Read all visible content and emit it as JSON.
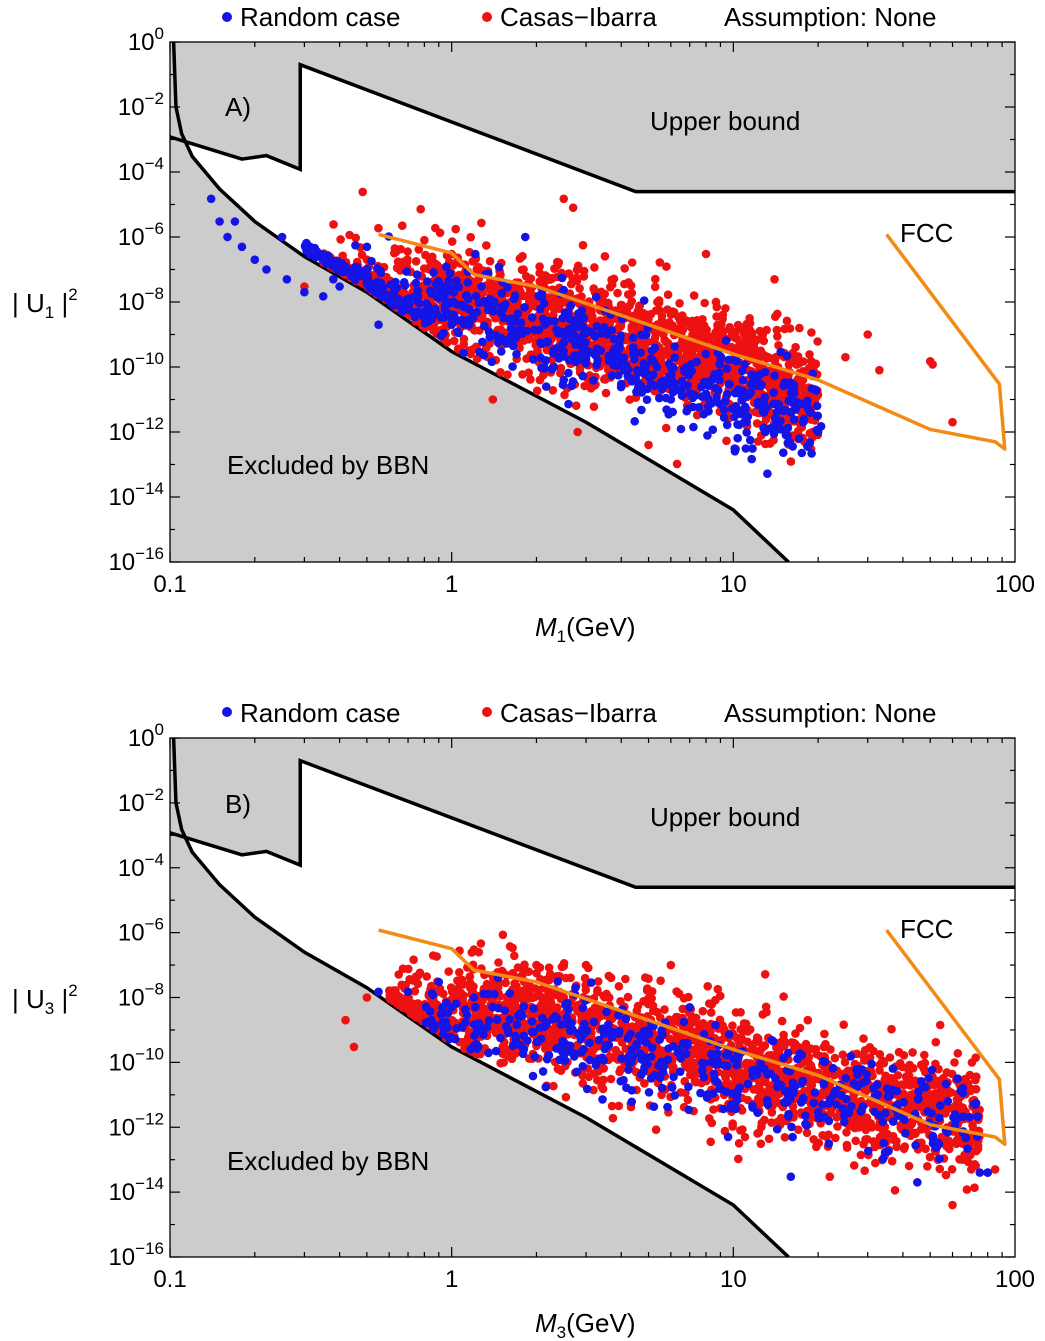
{
  "legend": {
    "random_label": "Random case",
    "ci_label": "Casas−Ibarra",
    "assumption": "Assumption: None",
    "random_color": "#1414e6",
    "ci_color": "#ee1111"
  },
  "region_color": "#cccccc",
  "fcc_color": "#f28a14",
  "chart_data": [
    {
      "type": "scatter",
      "panel_label": "A)",
      "xlabel_var": "M",
      "xlabel_sub": "1",
      "xlabel_unit": "(GeV)",
      "ylabel_pre": "| U",
      "ylabel_sub": "1",
      "ylabel_post": " |",
      "ylabel_sup": "2",
      "xscale": "log",
      "yscale": "log",
      "xlim": [
        0.1,
        100
      ],
      "ylim": [
        1e-16,
        1
      ],
      "x_ticks": [
        {
          "value": 0.1,
          "label": "0.1"
        },
        {
          "value": 1,
          "label": "1"
        },
        {
          "value": 10,
          "label": "10"
        },
        {
          "value": 100,
          "label": "100"
        }
      ],
      "y_ticks": [
        {
          "value": 0,
          "base": "10",
          "exp": "0"
        },
        {
          "value": -2,
          "base": "10",
          "exp": "−2"
        },
        {
          "value": -4,
          "base": "10",
          "exp": "−4"
        },
        {
          "value": -6,
          "base": "10",
          "exp": "−6"
        },
        {
          "value": -8,
          "base": "10",
          "exp": "−8"
        },
        {
          "value": -10,
          "base": "10",
          "exp": "−10"
        },
        {
          "value": -12,
          "base": "10",
          "exp": "−12"
        },
        {
          "value": -14,
          "base": "10",
          "exp": "−14"
        },
        {
          "value": -16,
          "base": "10",
          "exp": "−16"
        }
      ],
      "annotations": {
        "upper": "Upper bound",
        "bbn": "Excluded by BBN",
        "fcc": "FCC"
      },
      "upper_bound": [
        [
          0.1,
          0.0012
        ],
        [
          0.18,
          0.00025
        ],
        [
          0.22,
          0.00032
        ],
        [
          0.29,
          0.00012
        ],
        [
          0.29,
          0.2
        ],
        [
          4.5,
          2.5e-05
        ],
        [
          100,
          2.5e-05
        ]
      ],
      "bbn_bound": [
        [
          0.103,
          1
        ],
        [
          0.105,
          0.01
        ],
        [
          0.11,
          0.0015
        ],
        [
          0.12,
          0.0003
        ],
        [
          0.15,
          3e-05
        ],
        [
          0.2,
          3e-06
        ],
        [
          0.3,
          2.5e-07
        ],
        [
          0.5,
          2e-08
        ],
        [
          1,
          3e-10
        ],
        [
          3,
          2e-12
        ],
        [
          10,
          4e-15
        ],
        [
          15.7,
          1e-16
        ]
      ],
      "fcc_curve": [
        [
          0.55,
          1.2e-06
        ],
        [
          1.0,
          3.2e-07
        ],
        [
          1.2,
          7e-08
        ],
        [
          2,
          3e-08
        ],
        [
          5,
          2e-09
        ],
        [
          10,
          2.5e-10
        ],
        [
          20,
          4e-11
        ],
        [
          50,
          1.2e-12
        ],
        [
          85,
          5e-13
        ],
        [
          92,
          3e-13
        ],
        [
          88,
          3e-11
        ],
        [
          35,
          1.2e-06
        ]
      ],
      "series": [
        {
          "name": "Random case",
          "center": [
            [
              0.3,
              1e-08
            ],
            [
              0.8,
              1e-08
            ],
            [
              2,
              2e-09
            ],
            [
              5,
              1e-10
            ],
            [
              10,
              1e-11
            ],
            [
              20,
              3e-12
            ]
          ],
          "spread": 0.7,
          "points": [
            [
              0.14,
              1.5e-05
            ],
            [
              0.15,
              3e-06
            ],
            [
              0.16,
              1e-06
            ],
            [
              0.17,
              3e-06
            ],
            [
              0.18,
              5e-07
            ],
            [
              0.2,
              2e-07
            ],
            [
              0.22,
              1e-07
            ],
            [
              0.25,
              1e-06
            ],
            [
              0.26,
              5e-08
            ],
            [
              0.3,
              2e-08
            ],
            [
              0.35,
              1.5e-08
            ],
            [
              0.38,
              5e-08
            ],
            [
              0.4,
              3e-08
            ],
            [
              0.5,
              5e-07
            ],
            [
              0.55,
              2e-09
            ],
            [
              0.8,
              5e-09
            ],
            [
              1,
              2e-09
            ],
            [
              1.5,
              3e-10
            ],
            [
              2.5,
              4e-11
            ],
            [
              4,
              3e-11
            ],
            [
              6,
              1e-11
            ],
            [
              8,
              1.5e-11
            ],
            [
              11,
              5e-12
            ],
            [
              13,
              1e-12
            ],
            [
              20,
              1e-12
            ],
            [
              20.5,
              1.5e-12
            ]
          ]
        },
        {
          "name": "Casas−Ibarra",
          "center": [
            [
              0.35,
              1e-08
            ],
            [
              1,
              1.5e-08
            ],
            [
              3,
              1.5e-09
            ],
            [
              10,
              1e-10
            ],
            [
              20,
              1e-11
            ]
          ],
          "spread": 0.85,
          "points": [
            [
              0.3,
              3e-08
            ],
            [
              0.5,
              2e-07
            ],
            [
              0.8,
              8e-07
            ],
            [
              1,
              3e-07
            ],
            [
              1.8,
              1e-07
            ],
            [
              2.5,
              1.5e-05
            ],
            [
              2.7,
              8e-06
            ],
            [
              4,
              3e-09
            ],
            [
              8,
              3e-07
            ],
            [
              10,
              3e-10
            ],
            [
              12,
              2e-10
            ],
            [
              14,
              5e-08
            ],
            [
              25,
              2e-10
            ],
            [
              30,
              1e-09
            ],
            [
              33,
              8e-11
            ],
            [
              50,
              1.5e-10
            ],
            [
              51,
              1.2e-10
            ],
            [
              60,
              2e-12
            ],
            [
              1.4,
              1e-11
            ],
            [
              2.8,
              1e-12
            ],
            [
              3.2,
              6e-12
            ],
            [
              5,
              4e-13
            ],
            [
              10.2,
              3e-13
            ]
          ]
        }
      ]
    },
    {
      "type": "scatter",
      "panel_label": "B)",
      "xlabel_var": "M",
      "xlabel_sub": "3",
      "xlabel_unit": "(GeV)",
      "ylabel_pre": "| U",
      "ylabel_sub": "3",
      "ylabel_post": " |",
      "ylabel_sup": "2",
      "xscale": "log",
      "yscale": "log",
      "xlim": [
        0.1,
        100
      ],
      "ylim": [
        1e-16,
        1
      ],
      "x_ticks": [
        {
          "value": 0.1,
          "label": "0.1"
        },
        {
          "value": 1,
          "label": "1"
        },
        {
          "value": 10,
          "label": "10"
        },
        {
          "value": 100,
          "label": "100"
        }
      ],
      "y_ticks": [
        {
          "value": 0,
          "base": "10",
          "exp": "0"
        },
        {
          "value": -2,
          "base": "10",
          "exp": "−2"
        },
        {
          "value": -4,
          "base": "10",
          "exp": "−4"
        },
        {
          "value": -6,
          "base": "10",
          "exp": "−6"
        },
        {
          "value": -8,
          "base": "10",
          "exp": "−8"
        },
        {
          "value": -10,
          "base": "10",
          "exp": "−10"
        },
        {
          "value": -12,
          "base": "10",
          "exp": "−12"
        },
        {
          "value": -14,
          "base": "10",
          "exp": "−14"
        },
        {
          "value": -16,
          "base": "10",
          "exp": "−16"
        }
      ],
      "annotations": {
        "upper": "Upper bound",
        "bbn": "Excluded by BBN",
        "fcc": "FCC"
      },
      "upper_bound": [
        [
          0.1,
          0.0012
        ],
        [
          0.18,
          0.00025
        ],
        [
          0.22,
          0.00032
        ],
        [
          0.29,
          0.00012
        ],
        [
          0.29,
          0.2
        ],
        [
          4.5,
          2.5e-05
        ],
        [
          100,
          2.5e-05
        ]
      ],
      "bbn_bound": [
        [
          0.103,
          1
        ],
        [
          0.105,
          0.01
        ],
        [
          0.11,
          0.0015
        ],
        [
          0.12,
          0.0003
        ],
        [
          0.15,
          3e-05
        ],
        [
          0.2,
          3e-06
        ],
        [
          0.3,
          2.5e-07
        ],
        [
          0.5,
          2e-08
        ],
        [
          1,
          3e-10
        ],
        [
          3,
          2e-12
        ],
        [
          10,
          4e-15
        ],
        [
          15.7,
          1e-16
        ]
      ],
      "fcc_curve": [
        [
          0.55,
          1.2e-06
        ],
        [
          1.0,
          3.2e-07
        ],
        [
          1.2,
          7e-08
        ],
        [
          2,
          3e-08
        ],
        [
          5,
          2e-09
        ],
        [
          10,
          2.5e-10
        ],
        [
          20,
          4e-11
        ],
        [
          50,
          1.2e-12
        ],
        [
          85,
          5e-13
        ],
        [
          92,
          3e-13
        ],
        [
          88,
          3e-11
        ],
        [
          35,
          1.2e-06
        ]
      ],
      "series": [
        {
          "name": "Random case",
          "center": [
            [
              0.8,
              3e-09
            ],
            [
              3,
              4e-10
            ],
            [
              10,
              4e-11
            ],
            [
              30,
              5e-12
            ],
            [
              75,
              1e-12
            ]
          ],
          "spread": 0.7,
          "points": [
            [
              0.55,
              1.5e-08
            ],
            [
              0.7,
              1.5e-08
            ],
            [
              0.9,
              3e-08
            ],
            [
              1,
              5e-09
            ],
            [
              1.2,
              1e-08
            ],
            [
              7,
              5e-09
            ],
            [
              16,
              3e-14
            ],
            [
              45,
              2e-14
            ],
            [
              75,
              4e-14
            ],
            [
              80,
              4e-14
            ]
          ]
        },
        {
          "name": "Casas−Ibarra",
          "center": [
            [
              0.6,
              1.5e-09
            ],
            [
              1.5,
              5e-09
            ],
            [
              4,
              8e-10
            ],
            [
              10,
              8e-11
            ],
            [
              30,
              6e-12
            ],
            [
              75,
              1.5e-12
            ]
          ],
          "spread": 0.85,
          "points": [
            [
              0.42,
              2e-09
            ],
            [
              0.45,
              3e-10
            ],
            [
              0.5,
              1e-08
            ],
            [
              1.2,
              3e-07
            ],
            [
              2,
              1e-07
            ],
            [
              3,
              1e-07
            ],
            [
              6,
              1e-07
            ],
            [
              11,
              5e-13
            ],
            [
              20,
              3e-12
            ],
            [
              22,
              3e-14
            ],
            [
              29,
              3e-13
            ],
            [
              38,
              2.5e-13
            ],
            [
              60,
              4e-15
            ],
            [
              65,
              1e-13
            ],
            [
              80,
              4e-14
            ],
            [
              85,
              5e-14
            ]
          ]
        }
      ]
    }
  ]
}
